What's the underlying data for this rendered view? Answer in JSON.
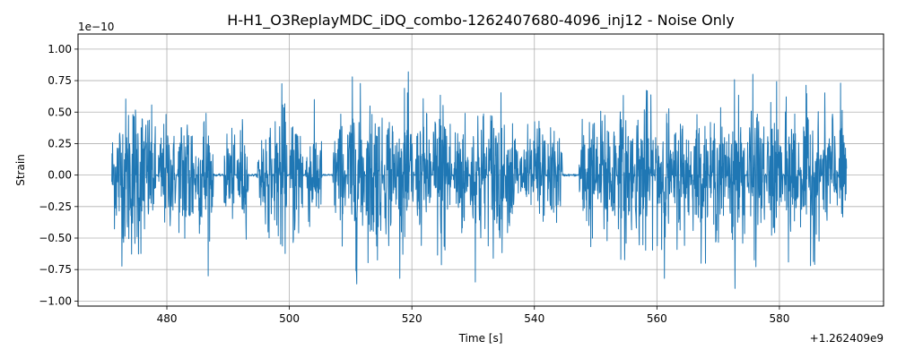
{
  "chart_data": {
    "type": "line",
    "title": "H-H1_O3ReplayMDC_iDQ_combo-1262407680-4096_inj12 - Noise Only",
    "xlabel": "Time [s]",
    "ylabel": "Strain",
    "y_exponent_label": "1e−10",
    "x_offset_label": "+1.262409e9",
    "x_ticks": [
      480,
      500,
      520,
      540,
      560,
      580
    ],
    "x_tick_labels": [
      "480",
      "500",
      "520",
      "540",
      "560",
      "580"
    ],
    "y_ticks": [
      -1.0,
      -0.75,
      -0.5,
      -0.25,
      0.0,
      0.25,
      0.5,
      0.75,
      1.0
    ],
    "y_tick_labels": [
      "−1.00",
      "−0.75",
      "−0.50",
      "−0.25",
      "0.00",
      "0.25",
      "0.50",
      "0.75",
      "1.00"
    ],
    "xlim": [
      465.5,
      597.0
    ],
    "ylim": [
      -1.04,
      1.12
    ],
    "grid": true,
    "legend": "none",
    "line_color": "#1f77b4",
    "series": [
      {
        "x_start": 471.0,
        "x_end": 591.0,
        "description_values": "bursty noise, amplitude mostly within ±0.5e-10, peaks near ±0.9e-10",
        "segments": [
          {
            "start": 471.0,
            "end": 478.2,
            "peak": 0.88
          },
          {
            "start": 478.6,
            "end": 481.5,
            "peak": 0.62
          },
          {
            "start": 481.8,
            "end": 484.8,
            "peak": 0.85
          },
          {
            "start": 485.0,
            "end": 487.6,
            "peak": 0.8
          },
          {
            "start": 489.3,
            "end": 491.1,
            "peak": 0.55
          },
          {
            "start": 491.4,
            "end": 493.3,
            "peak": 0.6
          },
          {
            "start": 494.8,
            "end": 497.2,
            "peak": 0.62
          },
          {
            "start": 497.5,
            "end": 499.6,
            "peak": 0.88
          },
          {
            "start": 500.1,
            "end": 502.2,
            "peak": 0.85
          },
          {
            "start": 502.6,
            "end": 505.3,
            "peak": 0.6
          },
          {
            "start": 507.1,
            "end": 509.2,
            "peak": 0.65
          },
          {
            "start": 509.4,
            "end": 512.3,
            "peak": 0.95
          },
          {
            "start": 512.5,
            "end": 515.2,
            "peak": 0.9
          },
          {
            "start": 515.4,
            "end": 517.6,
            "peak": 0.78
          },
          {
            "start": 517.8,
            "end": 520.3,
            "peak": 0.82
          },
          {
            "start": 520.6,
            "end": 523.2,
            "peak": 0.72
          },
          {
            "start": 523.4,
            "end": 526.5,
            "peak": 0.95
          },
          {
            "start": 526.8,
            "end": 529.2,
            "peak": 0.75
          },
          {
            "start": 529.5,
            "end": 532.2,
            "peak": 0.88
          },
          {
            "start": 532.4,
            "end": 535.1,
            "peak": 0.9
          },
          {
            "start": 535.3,
            "end": 537.4,
            "peak": 0.62
          },
          {
            "start": 537.6,
            "end": 539.6,
            "peak": 0.5
          },
          {
            "start": 539.8,
            "end": 541.8,
            "peak": 0.68
          },
          {
            "start": 542.1,
            "end": 544.6,
            "peak": 0.55
          },
          {
            "start": 547.3,
            "end": 550.4,
            "peak": 0.72
          },
          {
            "start": 550.6,
            "end": 553.4,
            "peak": 0.9
          },
          {
            "start": 553.6,
            "end": 556.2,
            "peak": 0.85
          },
          {
            "start": 556.4,
            "end": 559.4,
            "peak": 0.9
          },
          {
            "start": 559.6,
            "end": 562.4,
            "peak": 0.82
          },
          {
            "start": 562.6,
            "end": 565.6,
            "peak": 0.72
          },
          {
            "start": 565.8,
            "end": 568.4,
            "peak": 0.7
          },
          {
            "start": 568.6,
            "end": 571.4,
            "peak": 0.7
          },
          {
            "start": 571.6,
            "end": 574.4,
            "peak": 0.9
          },
          {
            "start": 574.7,
            "end": 577.6,
            "peak": 0.85
          },
          {
            "start": 577.8,
            "end": 580.6,
            "peak": 0.78
          },
          {
            "start": 580.8,
            "end": 583.2,
            "peak": 0.88
          },
          {
            "start": 583.4,
            "end": 586.8,
            "peak": 0.8
          },
          {
            "start": 587.0,
            "end": 589.5,
            "peak": 0.78
          },
          {
            "start": 589.7,
            "end": 591.0,
            "peak": 0.8
          }
        ]
      }
    ]
  }
}
